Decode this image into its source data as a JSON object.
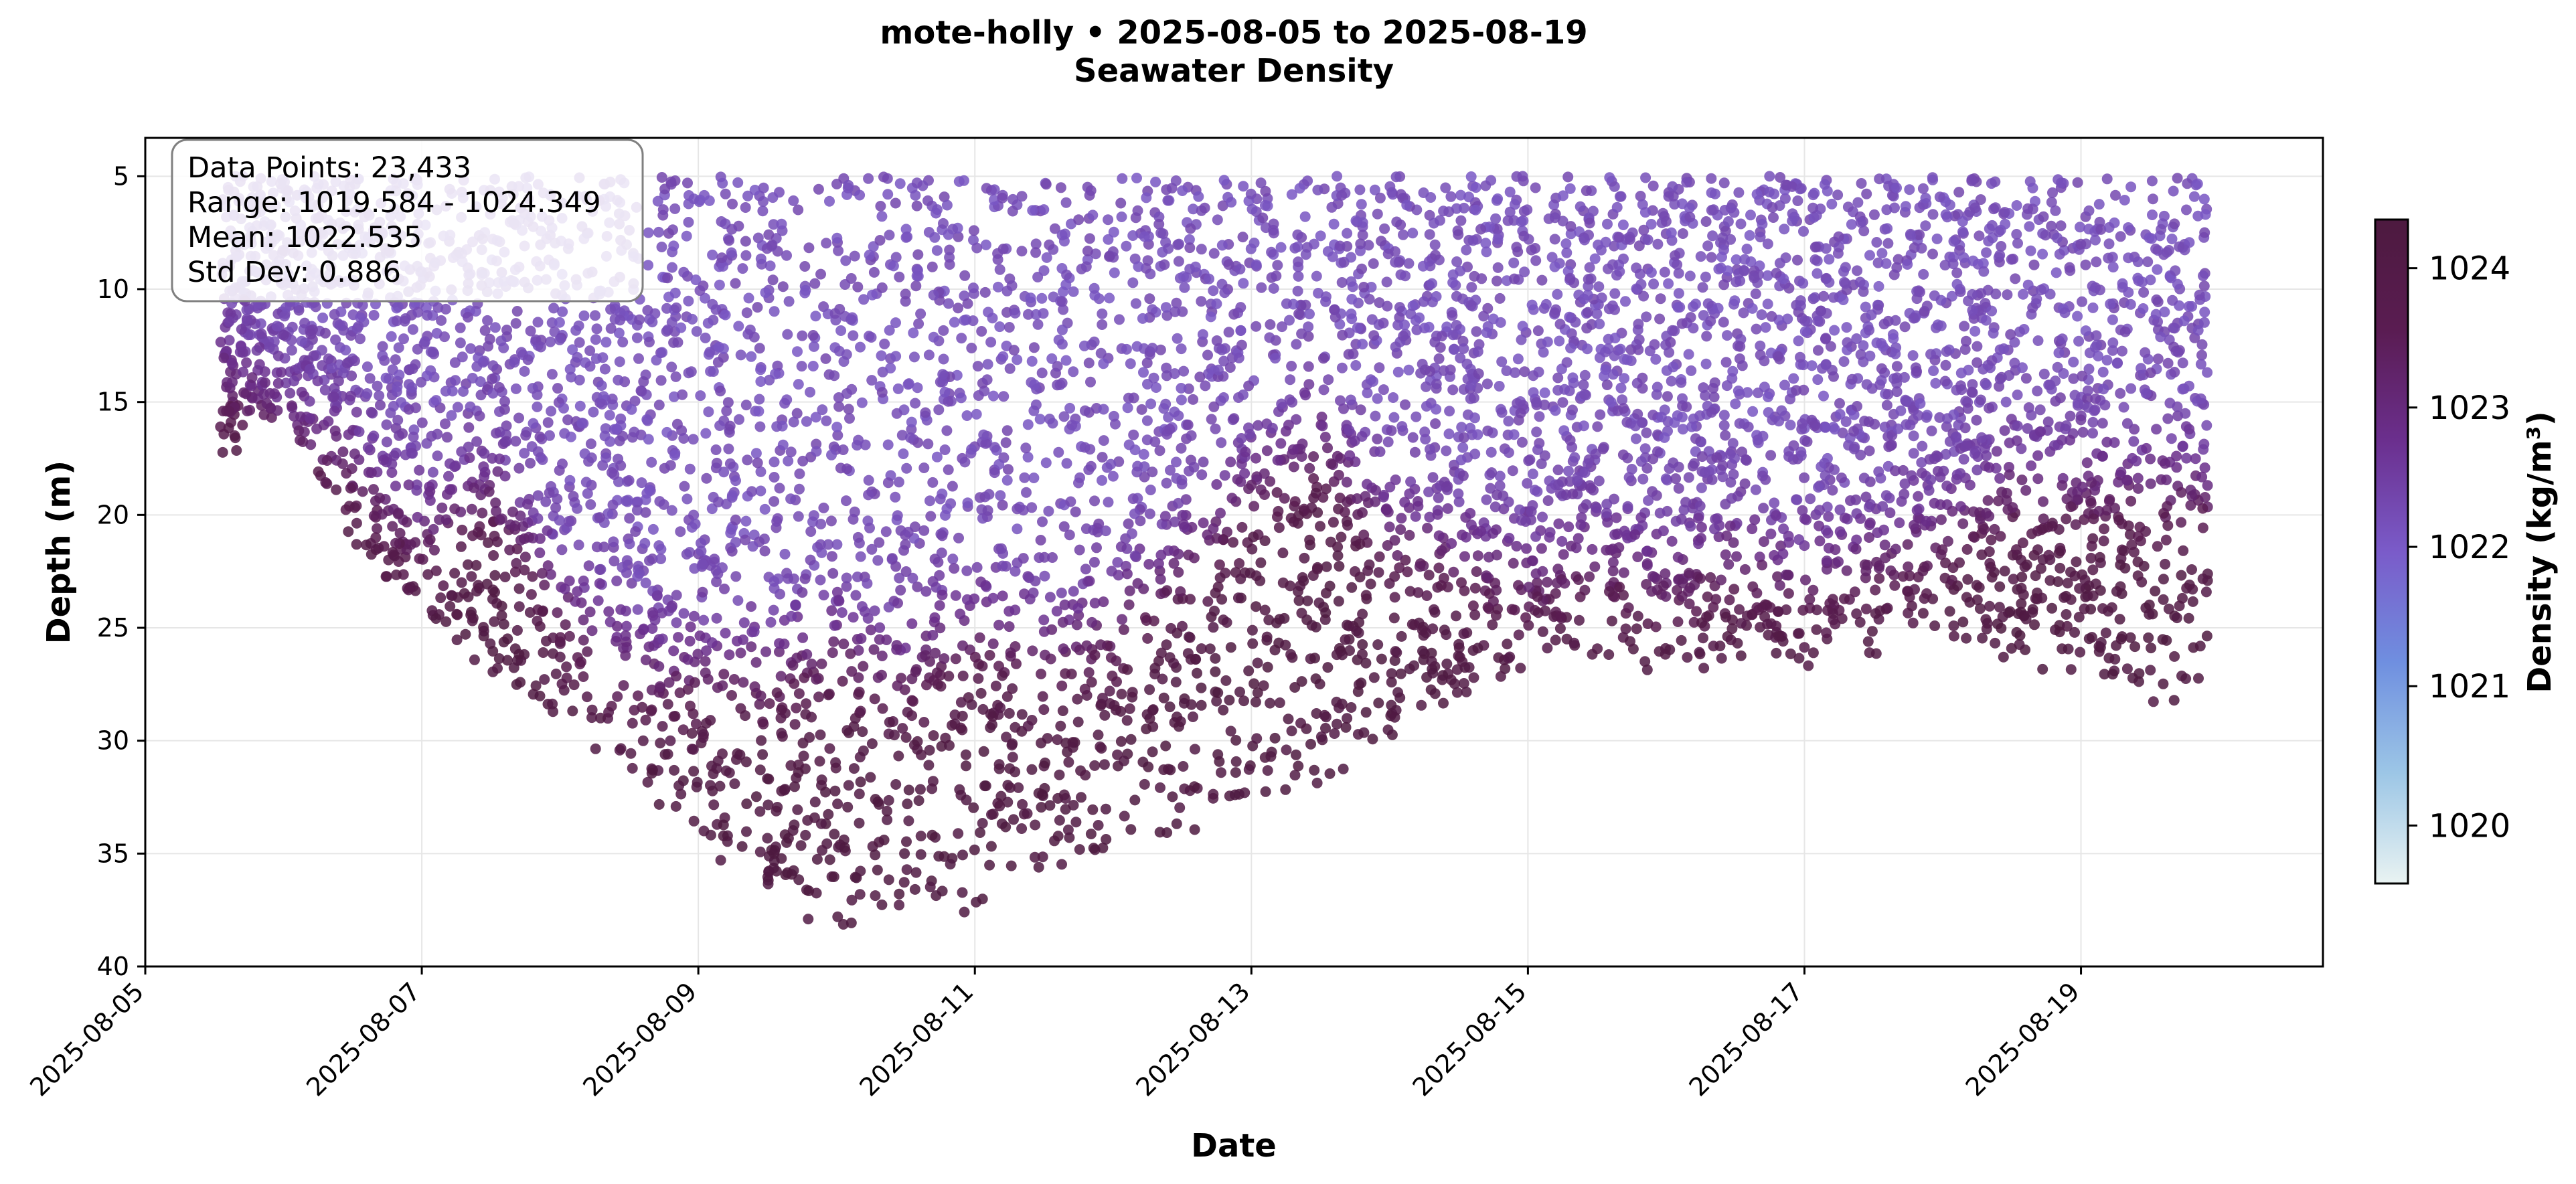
{
  "chart_data": {
    "type": "scatter",
    "title": "mote-holly • 2025-08-05 to 2025-08-19",
    "subtitle": "Seawater Density",
    "xlabel": "Date",
    "ylabel": "Depth (m)",
    "x_scale": "time",
    "x_range": [
      "2025-08-05T00:00",
      "2025-08-20T18:00"
    ],
    "x_ticks": [
      "2025-08-05",
      "2025-08-07",
      "2025-08-09",
      "2025-08-11",
      "2025-08-13",
      "2025-08-15",
      "2025-08-17",
      "2025-08-19"
    ],
    "y_inverted": true,
    "ylim": [
      3.3,
      40
    ],
    "y_ticks": [
      5,
      10,
      15,
      20,
      25,
      30,
      35,
      40
    ],
    "grid": true,
    "colorbar": {
      "label": "Density (kg/m³)",
      "range": [
        1019.584,
        1024.349
      ],
      "ticks": [
        1020,
        1021,
        1022,
        1023,
        1024
      ],
      "colormap": [
        "#e9f3f2",
        "#9cc6e6",
        "#6f8fe0",
        "#7a5bc9",
        "#6b2f8e",
        "#5a1c52",
        "#4d1a3f"
      ]
    },
    "stats": {
      "data_points": "Data Points: 23,433",
      "range": "Range: 1019.584 - 1024.349",
      "mean": "Mean: 1022.535",
      "std_dev": "Std Dev: 0.886"
    },
    "profiles": {
      "start": "2025-08-05T13:00",
      "end": "2025-08-19T22:00",
      "min_depth_m": 5,
      "max_depth_m_by_date": [
        [
          "2025-08-05T13:00",
          17.5
        ],
        [
          "2025-08-06T00:00",
          15
        ],
        [
          "2025-08-06T12:00",
          21
        ],
        [
          "2025-08-07T00:00",
          24.5
        ],
        [
          "2025-08-07T12:00",
          27
        ],
        [
          "2025-08-08T00:00",
          29
        ],
        [
          "2025-08-08T12:00",
          31
        ],
        [
          "2025-08-09T00:00",
          34
        ],
        [
          "2025-08-09T12:00",
          36.5
        ],
        [
          "2025-08-10T00:00",
          38
        ],
        [
          "2025-08-10T12:00",
          37.5
        ],
        [
          "2025-08-11T00:00",
          37
        ],
        [
          "2025-08-11T12:00",
          35.5
        ],
        [
          "2025-08-12T00:00",
          34.5
        ],
        [
          "2025-08-12T12:00",
          33.5
        ],
        [
          "2025-08-13T00:00",
          33
        ],
        [
          "2025-08-13T12:00",
          31.5
        ],
        [
          "2025-08-14T00:00",
          29.5
        ],
        [
          "2025-08-14T12:00",
          28
        ],
        [
          "2025-08-15T00:00",
          26.5
        ],
        [
          "2025-08-15T12:00",
          26
        ],
        [
          "2025-08-16T00:00",
          26.5
        ],
        [
          "2025-08-16T12:00",
          26
        ],
        [
          "2025-08-17T00:00",
          26
        ],
        [
          "2025-08-17T12:00",
          25.5
        ],
        [
          "2025-08-18T00:00",
          25
        ],
        [
          "2025-08-18T12:00",
          26
        ],
        [
          "2025-08-19T00:00",
          27
        ],
        [
          "2025-08-19T12:00",
          28
        ],
        [
          "2025-08-19T22:00",
          28
        ]
      ],
      "pycnocline_depth_m_by_date": [
        [
          "2025-08-05T13:00",
          14
        ],
        [
          "2025-08-06T12:00",
          18
        ],
        [
          "2025-08-07T00:00",
          21
        ],
        [
          "2025-08-07T12:00",
          19
        ],
        [
          "2025-08-08T00:00",
          24
        ],
        [
          "2025-08-08T12:00",
          27
        ],
        [
          "2025-08-09T00:00",
          27
        ],
        [
          "2025-08-09T12:00",
          27
        ],
        [
          "2025-08-10T00:00",
          26
        ],
        [
          "2025-08-10T12:00",
          27
        ],
        [
          "2025-08-11T00:00",
          25
        ],
        [
          "2025-08-11T12:00",
          26
        ],
        [
          "2025-08-12T00:00",
          25
        ],
        [
          "2025-08-12T12:00",
          22
        ],
        [
          "2025-08-13T00:00",
          19
        ],
        [
          "2025-08-13T12:00",
          17
        ],
        [
          "2025-08-14T00:00",
          21
        ],
        [
          "2025-08-14T12:00",
          22
        ],
        [
          "2025-08-15T00:00",
          23
        ],
        [
          "2025-08-15T12:00",
          22
        ],
        [
          "2025-08-16T00:00",
          23
        ],
        [
          "2025-08-16T12:00",
          22
        ],
        [
          "2025-08-17T00:00",
          23
        ],
        [
          "2025-08-17T12:00",
          22
        ],
        [
          "2025-08-18T00:00",
          21
        ],
        [
          "2025-08-18T12:00",
          19
        ],
        [
          "2025-08-19T00:00",
          19
        ],
        [
          "2025-08-19T12:00",
          19
        ],
        [
          "2025-08-19T22:00",
          19
        ]
      ],
      "surface_density": 1022.2,
      "bottom_density": 1024.2
    }
  }
}
